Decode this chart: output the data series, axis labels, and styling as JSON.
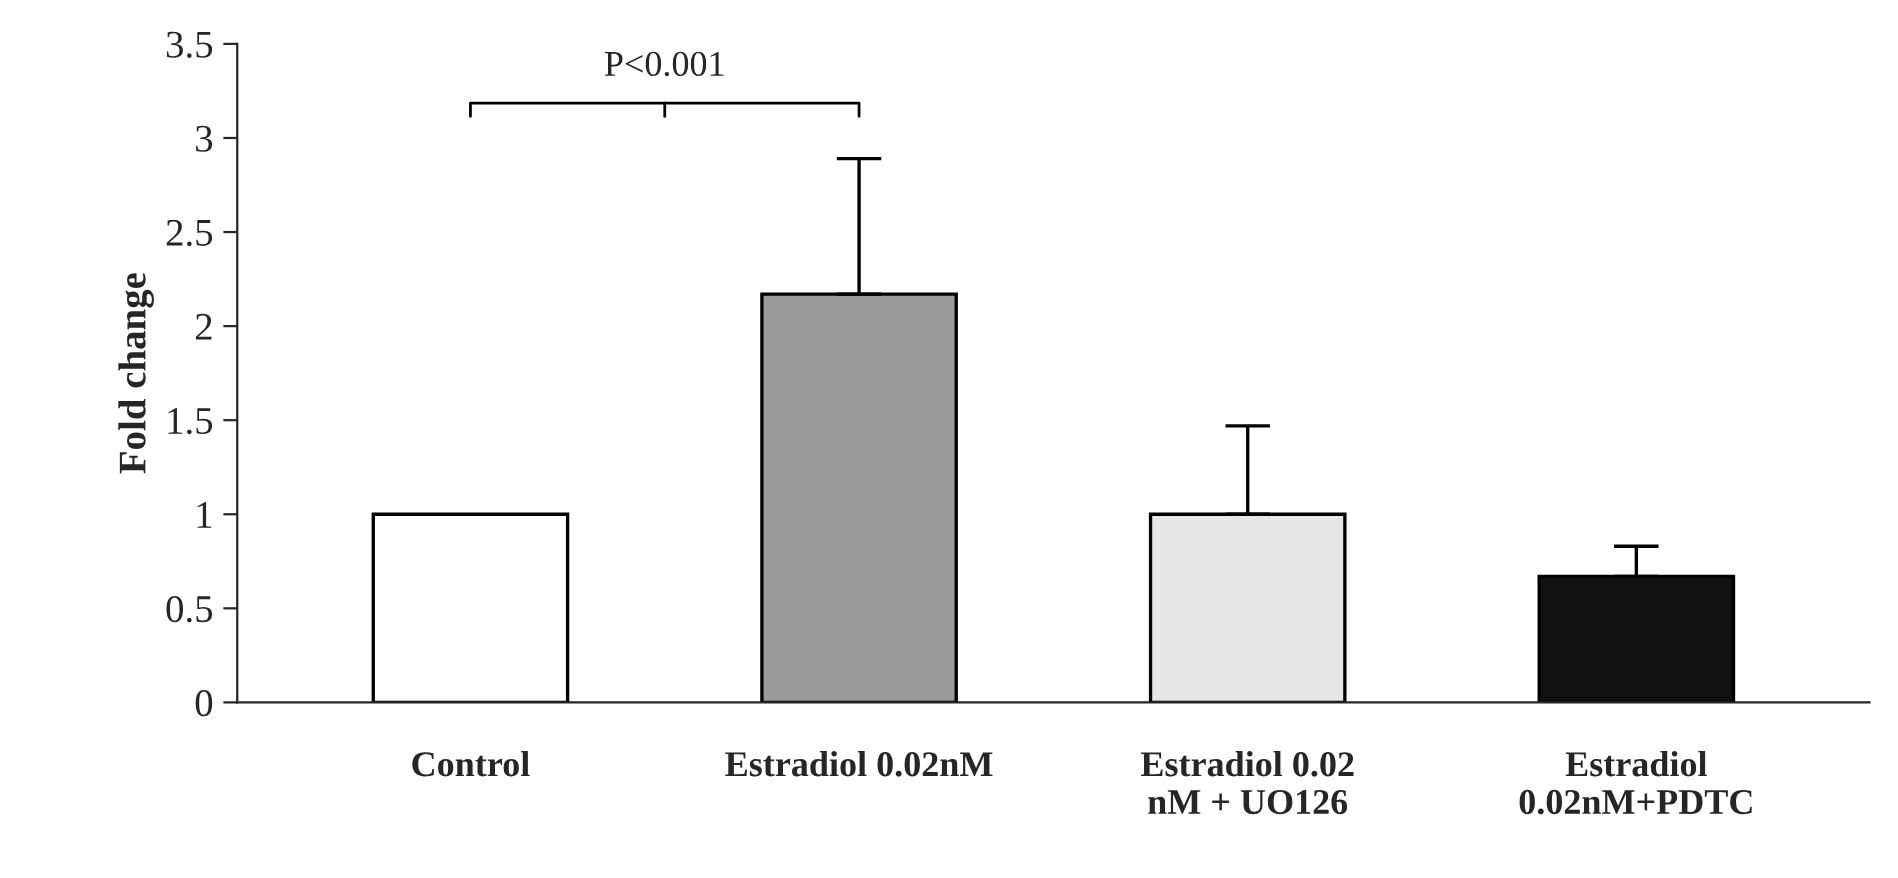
{
  "chart_data": {
    "type": "bar",
    "ylabel": "Fold change",
    "categories": [
      "Control",
      "Estradiol 0.02nM",
      "Estradiol 0.02\nnM + UO126",
      "Estradiol\n0.02nM+PDTC"
    ],
    "values": [
      1,
      2.17,
      1,
      0.67
    ],
    "colors": [
      "#ffffff",
      "#9a9a9a",
      "#e6e6e6",
      "#111111"
    ],
    "errors": [
      null,
      [
        2.17,
        2.89
      ],
      [
        1,
        1.47
      ],
      [
        0.67,
        0.83
      ]
    ],
    "ylim": [
      0,
      3.5
    ],
    "yticks": [
      0,
      0.5,
      1,
      1.5,
      2,
      2.5,
      3,
      3.5
    ],
    "annotations": [
      "P<0.001"
    ],
    "grid": false,
    "legend": false
  }
}
